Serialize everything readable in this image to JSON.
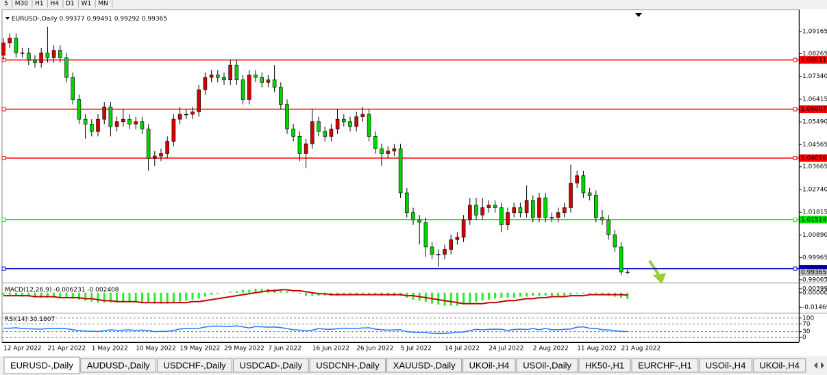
{
  "toolbar": [
    "5",
    "M30",
    "H1",
    "H4",
    "D1",
    "W1",
    "MN"
  ],
  "tabs": [
    "EURUSD-,Daily",
    "AUDUSD-,Daily",
    "USDCHF-,Daily",
    "USDCAD-,Daily",
    "USDCNH-,Daily",
    "XAUUSD-,Daily",
    "UKOil-,H4",
    "USOil-,Daily",
    "HK50-,H1",
    "EURCHF-,H1",
    "USOil-,H4",
    "UKOil-,H4"
  ],
  "active_tab": 0,
  "chart_data": [
    {
      "type": "candlestick",
      "title": "EURUSD-,Daily",
      "up_color": "#d40000",
      "down_color": "#00d400",
      "ylim": [
        0.9895,
        1.1006
      ],
      "yticks": [
        1.09165,
        1.08265,
        {
          "value": 1.0734,
          "label": "1.07340"
        },
        1.06415,
        {
          "value": 1.0549,
          "label": "1.05490"
        },
        1.04565,
        1.03665,
        {
          "value": 1.0274,
          "label": "1.02740"
        },
        1.01815,
        {
          "value": 1.0089,
          "label": "1.00890"
        },
        0.99965,
        0.99065
      ],
      "levels": [
        {
          "value": 1.08011,
          "color": "#ff0000",
          "label_color": "#ffffff"
        },
        {
          "value": 1.06007,
          "color": "#ff0000",
          "label_color": "#ffffff"
        },
        {
          "value": 1.04016,
          "color": "#ff0000",
          "label_color": "#ffffff"
        },
        {
          "value": 1.01514,
          "color": "#00e000",
          "label_color": "#000000"
        },
        {
          "value": 0.99518,
          "color": "#0000c8",
          "label_color": "#ffffff"
        }
      ],
      "categories": [
        "12 Apr 2022",
        null,
        null,
        null,
        null,
        null,
        null,
        "21 Apr 2022",
        null,
        null,
        null,
        null,
        null,
        null,
        "1 May 2022",
        null,
        null,
        null,
        null,
        null,
        null,
        "10 May 2022",
        null,
        null,
        null,
        null,
        null,
        null,
        "19 May 2022",
        null,
        null,
        null,
        null,
        null,
        null,
        "29 May 2022",
        null,
        null,
        null,
        null,
        null,
        null,
        "7 Jun 2022",
        null,
        null,
        null,
        null,
        null,
        null,
        "16 Jun 2022",
        null,
        null,
        null,
        null,
        null,
        null,
        "26 Jun 2022",
        null,
        null,
        null,
        null,
        null,
        null,
        "5 Jul 2022",
        null,
        null,
        null,
        null,
        null,
        null,
        "14 Jul 2022",
        null,
        null,
        null,
        null,
        null,
        null,
        "24 Jul 2022",
        null,
        null,
        null,
        null,
        null,
        null,
        "2 Aug 2022",
        null,
        null,
        null,
        null,
        null,
        null,
        "11 Aug 2022",
        null,
        null,
        null,
        null,
        null,
        null,
        "21 Aug 2022",
        null
      ],
      "open": [
        1.082,
        1.087,
        1.089,
        1.083,
        1.083,
        1.08,
        1.079,
        1.083,
        1.081,
        1.084,
        1.081,
        1.073,
        1.064,
        1.056,
        1.054,
        1.051,
        1.056,
        1.061,
        1.053,
        1.055,
        1.056,
        1.054,
        1.055,
        1.052,
        1.04,
        1.041,
        1.042,
        1.047,
        1.056,
        1.058,
        1.058,
        1.059,
        1.068,
        1.073,
        1.074,
        1.073,
        1.072,
        1.078,
        1.072,
        1.064,
        1.074,
        1.073,
        1.071,
        1.072,
        1.069,
        1.062,
        1.052,
        1.049,
        1.042,
        1.046,
        1.055,
        1.051,
        1.049,
        1.052,
        1.056,
        1.055,
        1.053,
        1.057,
        1.058,
        1.049,
        1.044,
        1.042,
        1.043,
        1.044,
        1.026,
        1.018,
        1.015,
        1.014,
        1.004,
        1.001,
        1.001,
        1.003,
        1.007,
        1.008,
        1.015,
        1.021,
        1.017,
        1.02,
        1.021,
        1.02,
        1.013,
        1.018,
        1.02,
        1.018,
        1.023,
        1.016,
        1.024,
        1.016,
        1.016,
        1.018,
        1.02,
        1.03,
        1.033,
        1.026,
        1.025,
        1.016,
        1.015,
        1.009,
        1.004,
        0.99377
      ],
      "high": [
        1.089,
        1.091,
        1.091,
        1.085,
        1.085,
        1.082,
        1.085,
        1.0936,
        1.086,
        1.086,
        1.083,
        1.075,
        1.066,
        1.058,
        1.056,
        1.058,
        1.063,
        1.063,
        1.057,
        1.06,
        1.058,
        1.057,
        1.057,
        1.054,
        1.043,
        1.044,
        1.049,
        1.058,
        1.061,
        1.06,
        1.061,
        1.07,
        1.075,
        1.076,
        1.076,
        1.075,
        1.08,
        1.08,
        1.074,
        1.076,
        1.076,
        1.075,
        1.074,
        1.078,
        1.071,
        1.064,
        1.054,
        1.051,
        1.048,
        1.06,
        1.057,
        1.053,
        1.054,
        1.06,
        1.058,
        1.057,
        1.059,
        1.061,
        1.06,
        1.051,
        1.046,
        1.045,
        1.046,
        1.046,
        1.028,
        1.02,
        1.017,
        1.016,
        1.006,
        1.003,
        1.005,
        1.009,
        1.01,
        1.017,
        1.024,
        1.024,
        1.024,
        1.023,
        1.023,
        1.022,
        1.02,
        1.022,
        1.022,
        1.029,
        1.025,
        1.026,
        1.026,
        1.018,
        1.02,
        1.022,
        1.0375,
        1.035,
        1.035,
        1.028,
        1.027,
        1.019,
        1.017,
        1.011,
        1.006,
        0.99491
      ],
      "low": [
        1.08,
        1.085,
        1.081,
        1.081,
        1.078,
        1.077,
        1.077,
        1.079,
        1.079,
        1.079,
        1.071,
        1.062,
        1.054,
        1.048,
        1.049,
        1.049,
        1.054,
        1.049,
        1.051,
        1.053,
        1.052,
        1.052,
        1.05,
        1.035,
        1.037,
        1.039,
        1.04,
        1.045,
        1.054,
        1.056,
        1.056,
        1.057,
        1.066,
        1.071,
        1.071,
        1.07,
        1.07,
        1.07,
        1.062,
        1.062,
        1.071,
        1.069,
        1.069,
        1.067,
        1.06,
        1.05,
        1.047,
        1.039,
        1.036,
        1.044,
        1.049,
        1.047,
        1.047,
        1.05,
        1.053,
        1.051,
        1.051,
        1.055,
        1.047,
        1.042,
        1.037,
        1.04,
        1.041,
        1.024,
        1.016,
        1.013,
        1.005,
        1.0,
        0.999,
        0.996,
        0.999,
        1.001,
        1.005,
        1.006,
        1.013,
        1.015,
        1.015,
        1.018,
        1.018,
        1.01,
        1.011,
        1.016,
        1.016,
        1.016,
        1.014,
        1.014,
        1.014,
        1.014,
        1.014,
        1.016,
        1.018,
        1.028,
        1.024,
        1.023,
        1.014,
        1.013,
        1.007,
        1.002,
        0.9925,
        0.99292
      ],
      "close": [
        1.087,
        1.089,
        1.083,
        1.083,
        1.08,
        1.079,
        1.083,
        1.081,
        1.084,
        1.081,
        1.073,
        1.064,
        1.056,
        1.054,
        1.051,
        1.056,
        1.061,
        1.053,
        1.055,
        1.056,
        1.054,
        1.055,
        1.052,
        1.04,
        1.041,
        1.042,
        1.047,
        1.056,
        1.058,
        1.058,
        1.059,
        1.068,
        1.073,
        1.074,
        1.073,
        1.072,
        1.078,
        1.072,
        1.064,
        1.074,
        1.073,
        1.071,
        1.072,
        1.069,
        1.062,
        1.052,
        1.049,
        1.042,
        1.046,
        1.055,
        1.051,
        1.049,
        1.052,
        1.056,
        1.055,
        1.053,
        1.057,
        1.058,
        1.049,
        1.044,
        1.042,
        1.043,
        1.044,
        1.026,
        1.018,
        1.015,
        1.014,
        1.004,
        1.001,
        1.001,
        1.003,
        1.007,
        1.008,
        1.015,
        1.021,
        1.017,
        1.02,
        1.021,
        1.02,
        1.013,
        1.018,
        1.02,
        1.018,
        1.023,
        1.016,
        1.024,
        1.016,
        1.016,
        1.018,
        1.02,
        1.03,
        1.033,
        1.026,
        1.025,
        1.016,
        1.015,
        1.009,
        1.004,
        0.99377,
        0.99365
      ]
    },
    {
      "type": "macd",
      "title": "MACD(12,26,9)",
      "ylim": [
        -0.0195,
        0.0095
      ],
      "yticks": [
        0.00399,
        {
          "value": 0,
          "label": "0.00000"
        },
        -0.01469
      ],
      "series": [
        {
          "style": "histogram",
          "color": "#2ee82e",
          "values": [
            -0.002,
            -0.002,
            -0.003,
            -0.004,
            -0.004,
            -0.005,
            -0.005,
            -0.005,
            -0.005,
            -0.005,
            -0.005,
            -0.006,
            -0.007,
            -0.008,
            -0.009,
            -0.01,
            -0.01,
            -0.01,
            -0.01,
            -0.01,
            -0.01,
            -0.01,
            -0.01,
            -0.01,
            -0.011,
            -0.011,
            -0.011,
            -0.01,
            -0.009,
            -0.008,
            -0.007,
            -0.006,
            -0.004,
            -0.002,
            -0.001,
            0.0,
            0.001,
            0.002,
            0.003,
            0.003,
            0.004,
            0.004,
            0.004,
            0.004,
            0.003,
            0.002,
            0.0,
            -0.001,
            -0.003,
            -0.003,
            -0.003,
            -0.003,
            -0.003,
            -0.003,
            -0.002,
            -0.002,
            -0.002,
            -0.001,
            -0.001,
            -0.002,
            -0.003,
            -0.003,
            -0.003,
            -0.003,
            -0.005,
            -0.007,
            -0.008,
            -0.009,
            -0.011,
            -0.012,
            -0.013,
            -0.013,
            -0.013,
            -0.012,
            -0.011,
            -0.009,
            -0.008,
            -0.007,
            -0.006,
            -0.005,
            -0.005,
            -0.005,
            -0.004,
            -0.004,
            -0.003,
            -0.003,
            -0.003,
            -0.003,
            -0.003,
            -0.003,
            -0.002,
            -0.001,
            -0.001,
            -0.001,
            -0.001,
            -0.002,
            -0.003,
            -0.004,
            -0.005,
            -0.006231
          ]
        },
        {
          "style": "line",
          "color": "#c80000",
          "values": [
            -0.003,
            -0.003,
            -0.003,
            -0.003,
            -0.003,
            -0.004,
            -0.004,
            -0.004,
            -0.004,
            -0.005,
            -0.005,
            -0.005,
            -0.005,
            -0.006,
            -0.006,
            -0.007,
            -0.008,
            -0.008,
            -0.009,
            -0.009,
            -0.009,
            -0.009,
            -0.01,
            -0.01,
            -0.01,
            -0.01,
            -0.01,
            -0.01,
            -0.01,
            -0.01,
            -0.009,
            -0.009,
            -0.008,
            -0.007,
            -0.006,
            -0.005,
            -0.004,
            -0.003,
            -0.002,
            -0.001,
            0.0,
            0.001,
            0.002,
            0.002,
            0.003,
            0.003,
            0.002,
            0.002,
            0.001,
            0.0,
            -0.001,
            -0.001,
            -0.002,
            -0.002,
            -0.002,
            -0.002,
            -0.002,
            -0.002,
            -0.002,
            -0.002,
            -0.002,
            -0.002,
            -0.002,
            -0.002,
            -0.003,
            -0.003,
            -0.004,
            -0.005,
            -0.006,
            -0.007,
            -0.008,
            -0.009,
            -0.01,
            -0.011,
            -0.011,
            -0.011,
            -0.011,
            -0.01,
            -0.01,
            -0.009,
            -0.008,
            -0.008,
            -0.007,
            -0.006,
            -0.006,
            -0.005,
            -0.005,
            -0.004,
            -0.004,
            -0.004,
            -0.003,
            -0.003,
            -0.003,
            -0.002,
            -0.002,
            -0.002,
            -0.002,
            -0.002,
            -0.002,
            -0.002408
          ]
        }
      ]
    },
    {
      "type": "line",
      "title": "RSI(14)",
      "ylim": [
        -24,
        124
      ],
      "yticks": [
        100,
        70,
        30,
        0
      ],
      "grid": true,
      "series": [
        {
          "color": "#1e78ff",
          "values": [
            48,
            48,
            50,
            46,
            45,
            44,
            43,
            46,
            45,
            47,
            45,
            40,
            36,
            33,
            32,
            31,
            35,
            40,
            36,
            38,
            39,
            37,
            38,
            36,
            30,
            31,
            32,
            36,
            44,
            46,
            46,
            47,
            54,
            58,
            59,
            57,
            56,
            60,
            55,
            49,
            56,
            55,
            53,
            54,
            51,
            46,
            40,
            38,
            34,
            38,
            46,
            43,
            42,
            45,
            48,
            47,
            46,
            49,
            50,
            43,
            40,
            38,
            39,
            40,
            30,
            27,
            26,
            25,
            22,
            21,
            21,
            23,
            27,
            28,
            36,
            42,
            39,
            42,
            43,
            42,
            37,
            41,
            43,
            41,
            46,
            40,
            47,
            40,
            40,
            42,
            44,
            53,
            55,
            48,
            47,
            40,
            39,
            35,
            32,
            30.1807
          ]
        }
      ]
    }
  ]
}
